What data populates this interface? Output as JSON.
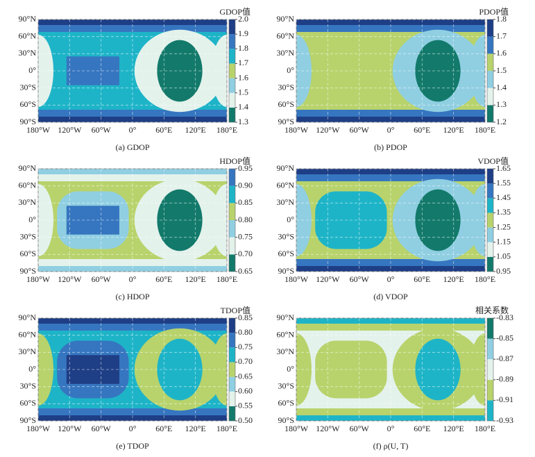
{
  "chart_data": [
    {
      "type": "contour",
      "title": "(a) GDOP",
      "colorbar_label": "GDOP值",
      "xlim": [
        -180,
        180
      ],
      "xticks": [
        {
          "value": -180,
          "label": "180°W"
        },
        {
          "value": -120,
          "label": "120°W"
        },
        {
          "value": -60,
          "label": "60°W"
        },
        {
          "value": 0,
          "label": "0°"
        },
        {
          "value": 60,
          "label": "60°E"
        },
        {
          "value": 120,
          "label": "120°E"
        },
        {
          "value": 180,
          "label": "180°E"
        }
      ],
      "ylim": [
        -90,
        90
      ],
      "yticks": [
        {
          "value": -90,
          "label": "90°S"
        },
        {
          "value": -60,
          "label": "60°S"
        },
        {
          "value": -30,
          "label": "30°S"
        },
        {
          "value": 0,
          "label": "0°"
        },
        {
          "value": 30,
          "label": "30°N"
        },
        {
          "value": 60,
          "label": "60°N"
        },
        {
          "value": 90,
          "label": "90°N"
        }
      ],
      "zlim": [
        1.3,
        2.0
      ],
      "zticks": [
        1.3,
        1.4,
        1.5,
        1.6,
        1.7,
        1.8,
        1.9,
        {
          "value": 2.0,
          "label": "2.0"
        }
      ],
      "colors": [
        "#137a6b",
        "#e4f2ec",
        "#90cfe2",
        "#b8d36c",
        "#1eb4c8",
        "#3676c0",
        "#1e3e86"
      ],
      "grid": true
    },
    {
      "type": "contour",
      "title": "(b) PDOP",
      "colorbar_label": "PDOP值",
      "xlim": [
        -180,
        180
      ],
      "xticks": [
        {
          "value": -180,
          "label": "180°W"
        },
        {
          "value": -120,
          "label": "120°W"
        },
        {
          "value": -60,
          "label": "60°W"
        },
        {
          "value": 0,
          "label": "0°"
        },
        {
          "value": 60,
          "label": "60°E"
        },
        {
          "value": 120,
          "label": "120°E"
        },
        {
          "value": 180,
          "label": "180°E"
        }
      ],
      "ylim": [
        -90,
        90
      ],
      "yticks": [
        {
          "value": -90,
          "label": "90°S"
        },
        {
          "value": -60,
          "label": "60°S"
        },
        {
          "value": -30,
          "label": "30°S"
        },
        {
          "value": 0,
          "label": "0°"
        },
        {
          "value": 30,
          "label": "30°N"
        },
        {
          "value": 60,
          "label": "60°N"
        },
        {
          "value": 90,
          "label": "90°N"
        }
      ],
      "zlim": [
        1.2,
        1.8
      ],
      "zticks": [
        1.2,
        1.3,
        1.4,
        1.5,
        1.6,
        1.7,
        1.8
      ],
      "colors": [
        "#137a6b",
        "#e4f2ec",
        "#90cfe2",
        "#b8d36c",
        "#3676c0",
        "#1e3e86"
      ],
      "grid": true
    },
    {
      "type": "contour",
      "title": "(c) HDOP",
      "colorbar_label": "HDOP值",
      "xlim": [
        -180,
        180
      ],
      "xticks": [
        {
          "value": -180,
          "label": "180°W"
        },
        {
          "value": -120,
          "label": "120°W"
        },
        {
          "value": -60,
          "label": "60°W"
        },
        {
          "value": 0,
          "label": "0°"
        },
        {
          "value": 60,
          "label": "60°E"
        },
        {
          "value": 120,
          "label": "120°E"
        },
        {
          "value": 180,
          "label": "180°E"
        }
      ],
      "ylim": [
        -90,
        90
      ],
      "yticks": [
        {
          "value": -90,
          "label": "90°S"
        },
        {
          "value": -60,
          "label": "60°S"
        },
        {
          "value": -30,
          "label": "30°S"
        },
        {
          "value": 0,
          "label": "0°"
        },
        {
          "value": 30,
          "label": "30°N"
        },
        {
          "value": 60,
          "label": "60°N"
        },
        {
          "value": 90,
          "label": "90°N"
        }
      ],
      "zlim": [
        0.65,
        0.95
      ],
      "zticks": [
        0.65,
        {
          "value": 0.7,
          "label": "0.70"
        },
        0.75,
        {
          "value": 0.8,
          "label": "0.80"
        },
        0.85,
        {
          "value": 0.9,
          "label": "0.90"
        },
        0.95
      ],
      "colors": [
        "#137a6b",
        "#e4f2ec",
        "#90cfe2",
        "#b8d36c",
        "#1eb4c8",
        "#3676c0"
      ],
      "grid": true
    },
    {
      "type": "contour",
      "title": "(d) VDOP",
      "colorbar_label": "VDOP值",
      "xlim": [
        -180,
        180
      ],
      "xticks": [
        {
          "value": -180,
          "label": "180°W"
        },
        {
          "value": -120,
          "label": "120°W"
        },
        {
          "value": -60,
          "label": "60°W"
        },
        {
          "value": 0,
          "label": "0°"
        },
        {
          "value": 60,
          "label": "60°E"
        },
        {
          "value": 120,
          "label": "120°E"
        },
        {
          "value": 180,
          "label": "180°E"
        }
      ],
      "ylim": [
        -90,
        90
      ],
      "yticks": [
        {
          "value": -90,
          "label": "90°S"
        },
        {
          "value": -60,
          "label": "60°S"
        },
        {
          "value": -30,
          "label": "30°S"
        },
        {
          "value": 0,
          "label": "0°"
        },
        {
          "value": 30,
          "label": "30°N"
        },
        {
          "value": 60,
          "label": "60°N"
        },
        {
          "value": 90,
          "label": "90°N"
        }
      ],
      "zlim": [
        0.95,
        1.65
      ],
      "zticks": [
        0.95,
        1.05,
        1.15,
        1.25,
        1.35,
        1.45,
        1.55,
        1.65
      ],
      "colors": [
        "#137a6b",
        "#e4f2ec",
        "#90cfe2",
        "#b8d36c",
        "#1eb4c8",
        "#3676c0",
        "#1e3e86"
      ],
      "grid": true
    },
    {
      "type": "contour",
      "title": "(e) TDOP",
      "colorbar_label": "TDOP值",
      "xlim": [
        -180,
        180
      ],
      "xticks": [
        {
          "value": -180,
          "label": "180°W"
        },
        {
          "value": -120,
          "label": "120°W"
        },
        {
          "value": -60,
          "label": "60°W"
        },
        {
          "value": 0,
          "label": "0°"
        },
        {
          "value": 60,
          "label": "60°E"
        },
        {
          "value": 120,
          "label": "120°E"
        },
        {
          "value": 180,
          "label": "180°E"
        }
      ],
      "ylim": [
        -90,
        90
      ],
      "yticks": [
        {
          "value": -90,
          "label": "90°S"
        },
        {
          "value": -60,
          "label": "60°S"
        },
        {
          "value": -30,
          "label": "30°S"
        },
        {
          "value": 0,
          "label": "0°"
        },
        {
          "value": 30,
          "label": "30°N"
        },
        {
          "value": 60,
          "label": "60°N"
        },
        {
          "value": 90,
          "label": "90°N"
        }
      ],
      "zlim": [
        0.5,
        0.85
      ],
      "zticks": [
        {
          "value": 0.5,
          "label": "0.50"
        },
        0.55,
        {
          "value": 0.6,
          "label": "0.60"
        },
        0.65,
        {
          "value": 0.7,
          "label": "0.70"
        },
        0.75,
        {
          "value": 0.8,
          "label": "0.80"
        },
        0.85
      ],
      "colors": [
        "#137a6b",
        "#e4f2ec",
        "#90cfe2",
        "#b8d36c",
        "#1eb4c8",
        "#3676c0",
        "#1e3e86"
      ],
      "grid": true
    },
    {
      "type": "contour",
      "title": "(f) ρ(U, T)",
      "colorbar_label": "相关系数",
      "xlim": [
        -180,
        180
      ],
      "xticks": [
        {
          "value": -180,
          "label": "180°W"
        },
        {
          "value": -120,
          "label": "120°W"
        },
        {
          "value": -60,
          "label": "60°W"
        },
        {
          "value": 0,
          "label": "0°"
        },
        {
          "value": 60,
          "label": "60°E"
        },
        {
          "value": 120,
          "label": "120°E"
        },
        {
          "value": 180,
          "label": "180°E"
        }
      ],
      "ylim": [
        -90,
        90
      ],
      "yticks": [
        {
          "value": -90,
          "label": "90°S"
        },
        {
          "value": -60,
          "label": "60°S"
        },
        {
          "value": -30,
          "label": "30°S"
        },
        {
          "value": 0,
          "label": "0°"
        },
        {
          "value": 30,
          "label": "30°N"
        },
        {
          "value": 60,
          "label": "60°N"
        },
        {
          "value": 90,
          "label": "90°N"
        }
      ],
      "zlim": [
        -0.93,
        -0.83
      ],
      "zticks": [
        -0.93,
        -0.91,
        -0.89,
        -0.87,
        -0.85,
        -0.83
      ],
      "colors": [
        "#1eb4c8",
        "#b8d36c",
        "#e4f2ec",
        "#90cfe2",
        "#137a6b"
      ],
      "grid": true
    }
  ]
}
